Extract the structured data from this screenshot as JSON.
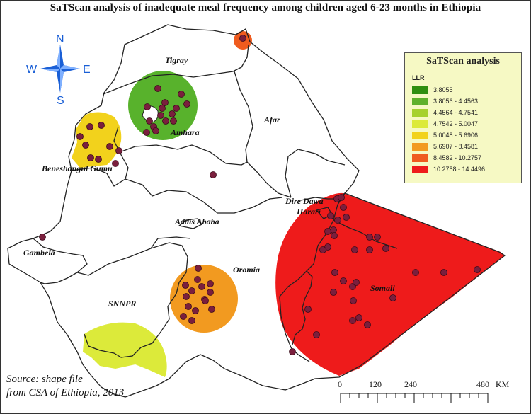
{
  "title": "SaTScan analysis of inadequate meal frequency among children aged 6-23 months in Ethiopia",
  "compass": {
    "north": "N",
    "south": "S",
    "east": "E",
    "west": "W"
  },
  "regions": {
    "tigray": "Tigray",
    "afar": "Afar",
    "amhara": "Amhara",
    "beneshangul": "Beneshangul Gumu",
    "dire_dawa": "Dire Dawa",
    "harari": "Harari",
    "addis_ababa": "Addis Ababa",
    "gambela": "Gambela",
    "oromia": "Oromia",
    "snnpr": "SNNPR",
    "somali": "Somali"
  },
  "legend": {
    "title": "SaTScan analysis",
    "subtitle": "LLR",
    "items": [
      {
        "label": "3.8055",
        "color": "#2f8f0f"
      },
      {
        "label": "3.8056 - 4.4563",
        "color": "#5fb12a"
      },
      {
        "label": "4.4564 - 4.7541",
        "color": "#a6d12f"
      },
      {
        "label": "4.7542 - 5.0047",
        "color": "#dcea3a"
      },
      {
        "label": "5.0048 - 5.6906",
        "color": "#f2d21c"
      },
      {
        "label": "5.6907 - 8.4581",
        "color": "#f29a20"
      },
      {
        "label": "8.4582 - 10.2757",
        "color": "#ef5b1e"
      },
      {
        "label": "10.2758 - 14.4496",
        "color": "#ee1b1b"
      }
    ]
  },
  "scale": {
    "ticks": [
      "0",
      "120",
      "240",
      "480"
    ],
    "unit": "KM"
  },
  "source": {
    "line1": "Source: shape file",
    "line2": "from CSA of Ethiopia, 2013"
  },
  "colors": {
    "dot": "#7a1f3d",
    "dot_stroke": "#3a0a1a",
    "outline": "#222222"
  }
}
